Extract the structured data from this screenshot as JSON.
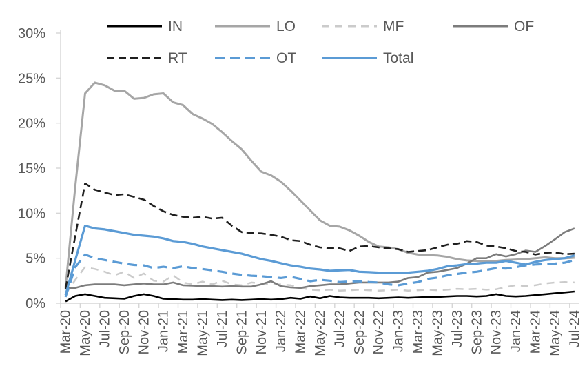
{
  "chart_data": {
    "type": "line",
    "title": "",
    "xlabel": "",
    "ylabel": "",
    "grid": false,
    "legend_position": "top",
    "axis_color": "#D6D6D6",
    "text_color": "#595959",
    "y_axis": {
      "min": 0,
      "max": 30,
      "step": 5,
      "unit": "%",
      "tick_labels": [
        "0%",
        "5%",
        "10%",
        "15%",
        "20%",
        "25%",
        "30%"
      ]
    },
    "x_label_every": 2,
    "x": [
      "Mar-20",
      "Apr-20",
      "May-20",
      "Jun-20",
      "Jul-20",
      "Aug-20",
      "Sep-20",
      "Oct-20",
      "Nov-20",
      "Dec-20",
      "Jan-21",
      "Feb-21",
      "Mar-21",
      "Apr-21",
      "May-21",
      "Jun-21",
      "Jul-21",
      "Aug-21",
      "Sep-21",
      "Oct-21",
      "Nov-21",
      "Dec-21",
      "Jan-22",
      "Feb-22",
      "Mar-22",
      "Apr-22",
      "May-22",
      "Jun-22",
      "Jul-22",
      "Aug-22",
      "Sep-22",
      "Oct-22",
      "Nov-22",
      "Dec-22",
      "Jan-23",
      "Feb-23",
      "Mar-23",
      "Apr-23",
      "May-23",
      "Jun-23",
      "Jul-23",
      "Aug-23",
      "Sep-23",
      "Oct-23",
      "Nov-23",
      "Dec-23",
      "Jan-24",
      "Feb-24",
      "Mar-24",
      "Apr-24",
      "May-24",
      "Jun-24",
      "Jul-24"
    ],
    "legend_rows": [
      [
        "IN",
        "LO",
        "MF",
        "OF"
      ],
      [
        "RT",
        "OT",
        "Total"
      ]
    ],
    "series": [
      {
        "name": "IN",
        "color": "#000000",
        "dash": "",
        "width": 2.6,
        "values": [
          0.2,
          0.8,
          1.0,
          0.8,
          0.6,
          0.55,
          0.5,
          0.8,
          1.0,
          0.8,
          0.5,
          0.45,
          0.4,
          0.4,
          0.45,
          0.4,
          0.35,
          0.4,
          0.35,
          0.4,
          0.45,
          0.4,
          0.45,
          0.6,
          0.5,
          0.75,
          0.55,
          0.8,
          0.65,
          0.6,
          0.6,
          0.6,
          0.55,
          0.6,
          0.65,
          0.6,
          0.65,
          0.7,
          0.7,
          0.75,
          0.8,
          0.8,
          0.75,
          0.8,
          1.0,
          0.8,
          0.75,
          0.8,
          0.9,
          1.0,
          1.1,
          1.2,
          1.3
        ]
      },
      {
        "name": "LO",
        "color": "#A6A6A6",
        "dash": "",
        "width": 3,
        "values": [
          1.7,
          13.0,
          23.3,
          24.5,
          24.2,
          23.6,
          23.6,
          22.7,
          22.8,
          23.2,
          23.3,
          22.3,
          22.0,
          21.0,
          20.5,
          19.9,
          19.0,
          18.0,
          17.1,
          15.8,
          14.6,
          14.2,
          13.5,
          12.5,
          11.4,
          10.3,
          9.2,
          8.6,
          8.5,
          8.1,
          7.5,
          6.8,
          6.3,
          6.2,
          6.0,
          5.6,
          5.4,
          5.35,
          5.3,
          5.15,
          4.9,
          4.75,
          4.7,
          4.65,
          4.7,
          4.8,
          4.85,
          4.9,
          5.0,
          5.1,
          5.0,
          5.0,
          5.05
        ]
      },
      {
        "name": "MF",
        "color": "#CBCBCB",
        "dash": "11 8",
        "width": 2.5,
        "values": [
          1.0,
          2.6,
          4.0,
          3.8,
          3.5,
          3.1,
          3.5,
          2.8,
          3.3,
          2.5,
          2.4,
          3.1,
          2.3,
          2.1,
          2.4,
          2.1,
          2.5,
          2.1,
          2.0,
          2.3,
          2.2,
          2.1,
          2.1,
          2.0,
          1.7,
          1.5,
          1.45,
          1.5,
          1.4,
          1.45,
          1.5,
          1.45,
          1.4,
          1.45,
          1.5,
          1.4,
          1.45,
          1.5,
          1.45,
          1.5,
          1.6,
          1.55,
          1.6,
          1.5,
          1.55,
          1.8,
          2.0,
          1.9,
          2.0,
          2.2,
          2.3,
          2.35,
          2.3
        ]
      },
      {
        "name": "OF",
        "color": "#7C7C7C",
        "dash": "",
        "width": 2.6,
        "values": [
          1.7,
          1.7,
          2.0,
          2.1,
          2.1,
          2.1,
          2.0,
          2.1,
          2.2,
          2.1,
          2.1,
          2.3,
          2.0,
          1.95,
          1.9,
          1.9,
          1.85,
          1.9,
          1.85,
          1.85,
          2.1,
          2.45,
          1.9,
          1.76,
          1.7,
          1.9,
          2.0,
          2.1,
          2.1,
          2.2,
          2.3,
          2.3,
          2.3,
          2.3,
          2.4,
          2.8,
          2.9,
          3.4,
          3.5,
          3.7,
          3.9,
          4.4,
          5.0,
          5.0,
          5.45,
          5.2,
          5.45,
          5.85,
          5.7,
          6.35,
          7.1,
          7.9,
          8.3
        ]
      },
      {
        "name": "RT",
        "color": "#1F1F1F",
        "dash": "11 6",
        "width": 2.6,
        "values": [
          1.6,
          7.5,
          13.3,
          12.6,
          12.3,
          12.0,
          12.1,
          11.8,
          11.5,
          10.8,
          10.2,
          9.8,
          9.6,
          9.5,
          9.6,
          9.4,
          9.5,
          8.6,
          7.9,
          7.8,
          7.75,
          7.6,
          7.4,
          7.0,
          6.9,
          6.5,
          6.2,
          6.1,
          6.1,
          5.8,
          6.3,
          6.35,
          6.2,
          6.1,
          6.0,
          5.7,
          5.8,
          5.9,
          6.2,
          6.5,
          6.6,
          6.9,
          6.8,
          6.4,
          6.3,
          6.1,
          5.8,
          5.7,
          5.4,
          5.6,
          5.65,
          5.45,
          5.5
        ]
      },
      {
        "name": "OT",
        "color": "#5B9BD5",
        "dash": "14 8",
        "width": 3.2,
        "values": [
          0.7,
          4.0,
          5.4,
          5.0,
          4.8,
          4.6,
          4.4,
          4.25,
          4.2,
          3.9,
          4.05,
          3.9,
          4.1,
          3.9,
          3.8,
          3.65,
          3.5,
          3.3,
          3.15,
          3.05,
          3.0,
          2.9,
          2.8,
          2.95,
          2.7,
          2.45,
          2.6,
          2.5,
          2.35,
          2.4,
          2.45,
          2.35,
          2.3,
          2.1,
          2.0,
          2.2,
          2.35,
          2.7,
          2.85,
          3.1,
          3.25,
          3.4,
          3.5,
          3.7,
          3.9,
          3.85,
          4.0,
          4.2,
          4.3,
          4.35,
          4.4,
          4.5,
          4.8
        ]
      },
      {
        "name": "Total",
        "color": "#5B9BD5",
        "dash": "",
        "width": 3.2,
        "values": [
          0.9,
          4.8,
          8.6,
          8.3,
          8.2,
          8.0,
          7.8,
          7.6,
          7.5,
          7.4,
          7.2,
          6.9,
          6.8,
          6.6,
          6.3,
          6.1,
          5.9,
          5.7,
          5.5,
          5.2,
          4.9,
          4.7,
          4.45,
          4.2,
          4.05,
          3.85,
          3.75,
          3.6,
          3.65,
          3.7,
          3.5,
          3.45,
          3.4,
          3.4,
          3.4,
          3.4,
          3.5,
          3.6,
          3.8,
          4.1,
          4.2,
          4.35,
          4.4,
          4.5,
          4.5,
          4.7,
          4.5,
          4.3,
          4.6,
          4.8,
          4.9,
          5.0,
          5.3
        ]
      }
    ]
  }
}
